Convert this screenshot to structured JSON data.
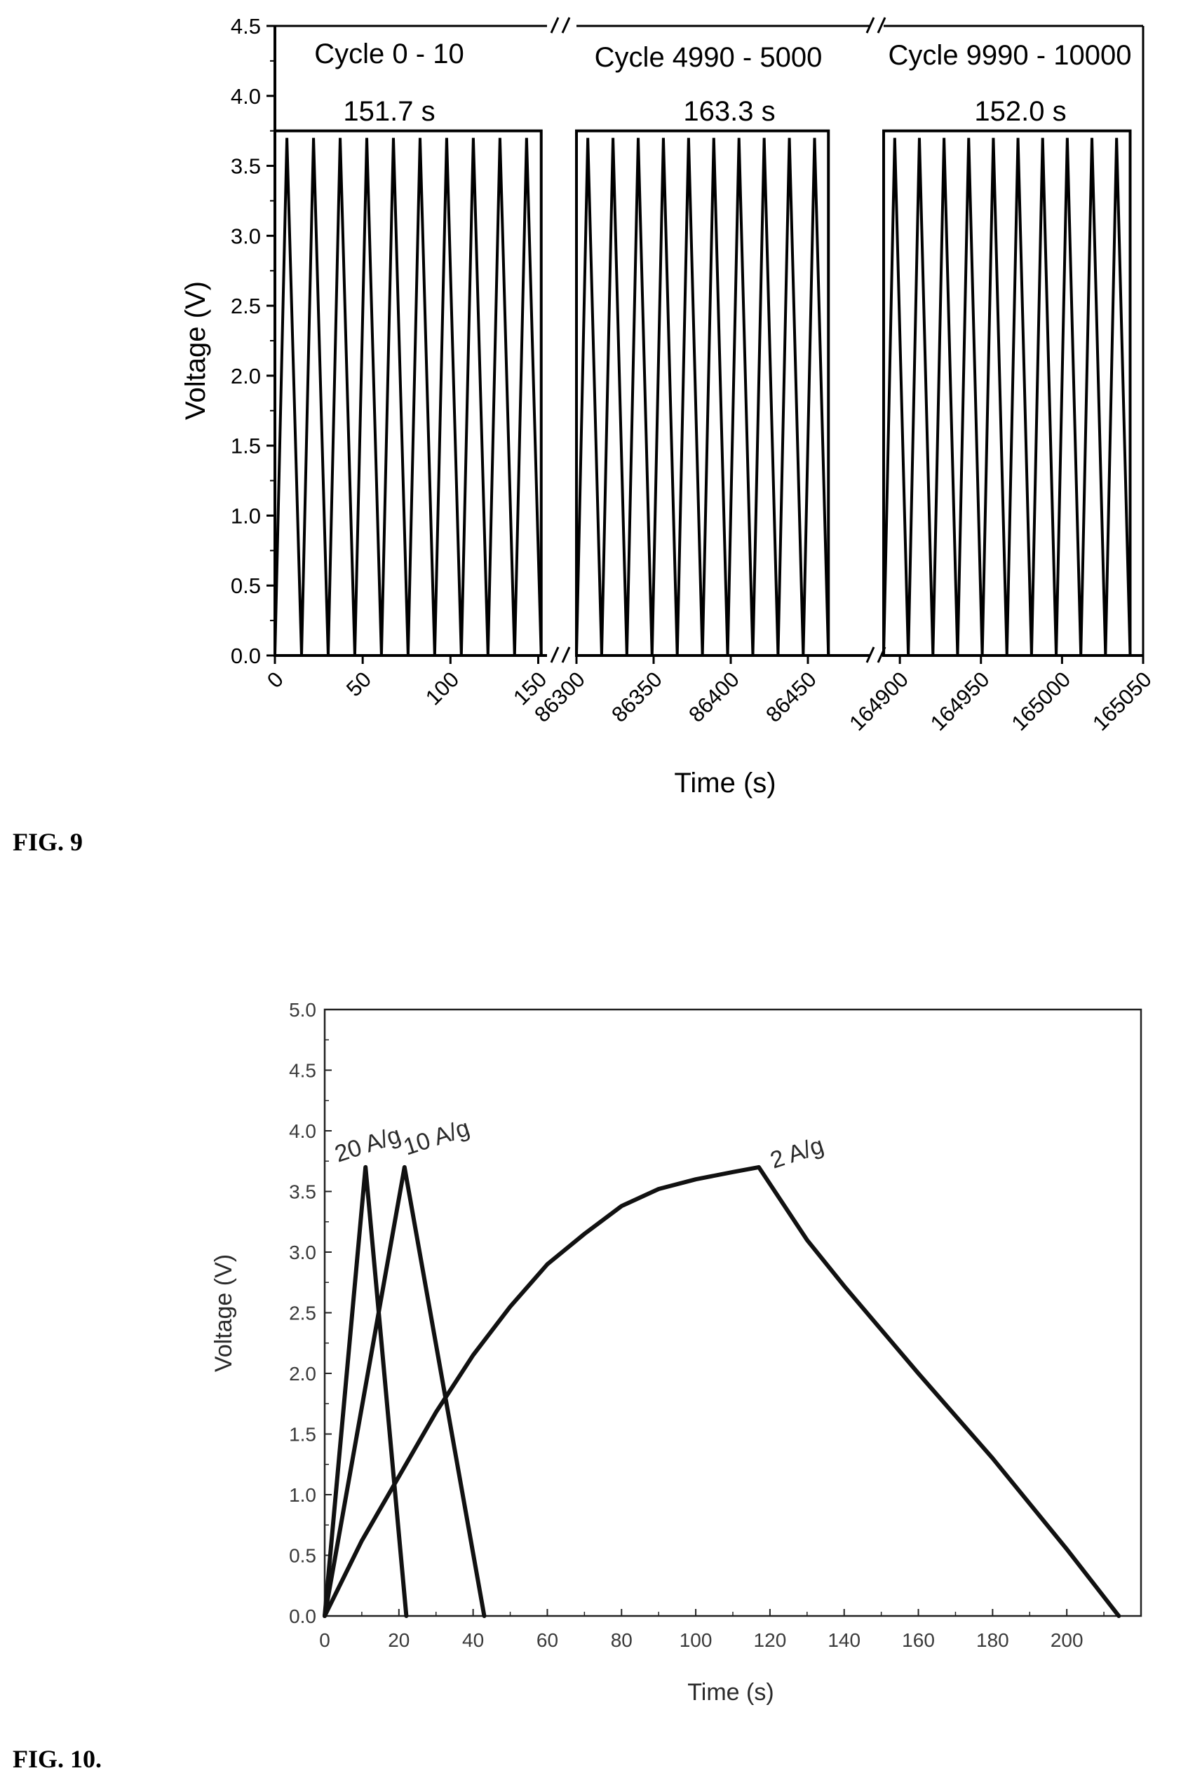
{
  "figures": {
    "fig9_label": "FIG. 9",
    "fig10_label": "FIG. 10."
  },
  "chart_data": [
    {
      "type": "line",
      "title": "",
      "xlabel": "Time (s)",
      "ylabel": "Voltage (V)",
      "ylim": [
        0,
        4.5
      ],
      "yticks": [
        "0.0",
        "0.5",
        "1.0",
        "1.5",
        "2.0",
        "2.5",
        "3.0",
        "3.5",
        "4.0",
        "4.5"
      ],
      "broken_x_axis": true,
      "segments": [
        {
          "cycle_label": "Cycle 0 - 10",
          "duration_label": "151.7 s",
          "xlim": [
            0,
            155
          ],
          "xticks": [
            "0",
            "50",
            "100",
            "150"
          ],
          "cycles": 10,
          "peak_voltage": 3.7,
          "duration_s": 151.7
        },
        {
          "cycle_label": "Cycle 4990 - 5000",
          "duration_label": "163.3 s",
          "xlim": [
            86300,
            86490
          ],
          "xticks": [
            "86300",
            "86350",
            "86400",
            "86450"
          ],
          "cycles": 10,
          "peak_voltage": 3.7,
          "duration_s": 163.3
        },
        {
          "cycle_label": "Cycle 9990 - 10000",
          "duration_label": "152.0 s",
          "xlim": [
            164890,
            165050
          ],
          "xticks": [
            "164900",
            "164950",
            "165000",
            "165050"
          ],
          "cycles": 10,
          "peak_voltage": 3.7,
          "duration_s": 152.0
        }
      ],
      "grid": false
    },
    {
      "type": "line",
      "title": "",
      "xlabel": "Time (s)",
      "ylabel": "Voltage (V)",
      "xlim": [
        0,
        220
      ],
      "ylim": [
        0,
        5.0
      ],
      "xticks": [
        "0",
        "20",
        "40",
        "60",
        "80",
        "100",
        "120",
        "140",
        "160",
        "180",
        "200"
      ],
      "yticks": [
        "0.0",
        "0.5",
        "1.0",
        "1.5",
        "2.0",
        "2.5",
        "3.0",
        "3.5",
        "4.0",
        "4.5",
        "5.0"
      ],
      "grid": false,
      "series": [
        {
          "name": "20 A/g",
          "x": [
            0,
            11,
            22
          ],
          "y": [
            0,
            3.7,
            0
          ]
        },
        {
          "name": "10 A/g",
          "x": [
            0,
            21.5,
            43
          ],
          "y": [
            0,
            3.7,
            0
          ]
        },
        {
          "name": "2 A/g",
          "x": [
            0,
            10,
            20,
            30,
            40,
            50,
            60,
            70,
            80,
            90,
            100,
            110,
            117,
            130,
            140,
            160,
            180,
            200,
            214
          ],
          "y": [
            0,
            0.62,
            1.15,
            1.68,
            2.15,
            2.55,
            2.9,
            3.15,
            3.38,
            3.52,
            3.6,
            3.66,
            3.7,
            3.1,
            2.72,
            2.0,
            1.3,
            0.55,
            0
          ]
        }
      ]
    }
  ]
}
